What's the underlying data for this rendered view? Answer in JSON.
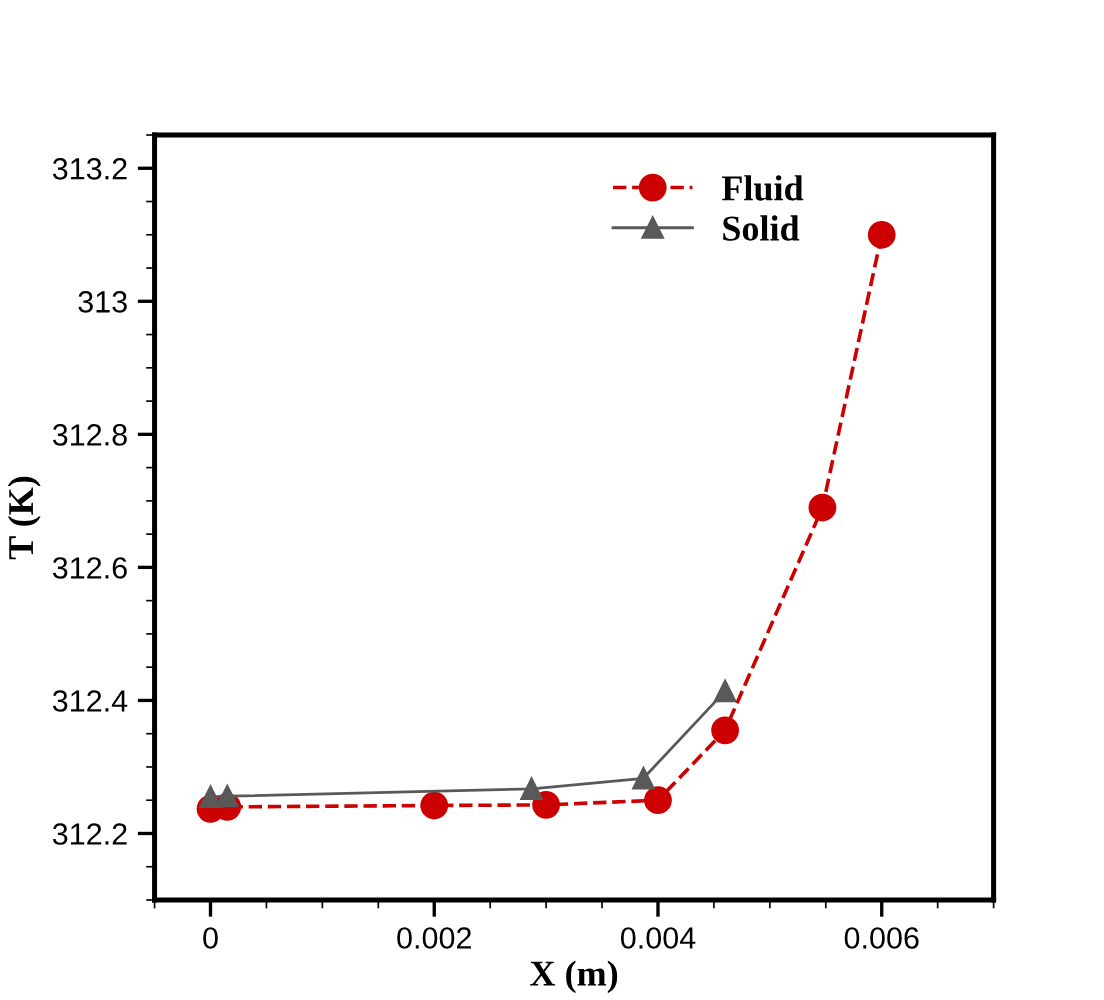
{
  "chart_data": {
    "type": "line",
    "xlabel": "X (m)",
    "ylabel": "T (K)",
    "xlim": [
      -0.0005,
      0.007
    ],
    "ylim": [
      312.1,
      313.25
    ],
    "xticks": [
      {
        "value": 0,
        "label": "0"
      },
      {
        "value": 0.002,
        "label": "0.002"
      },
      {
        "value": 0.004,
        "label": "0.004"
      },
      {
        "value": 0.006,
        "label": "0.006"
      }
    ],
    "yticks": [
      312.2,
      312.4,
      312.6,
      312.8,
      {
        "value": 313,
        "label": "313"
      },
      313.2
    ],
    "grid": false,
    "legend": "top right",
    "series": [
      {
        "name": "Fluid",
        "color": "#cc0000",
        "marker": "circle",
        "line_style": "dashed",
        "x": [
          0,
          0.00015,
          0.002,
          0.003,
          0.004,
          0.0046,
          0.00547,
          0.006
        ],
        "values": [
          312.237,
          312.24,
          312.242,
          312.243,
          312.25,
          312.355,
          312.69,
          313.1
        ]
      },
      {
        "name": "Solid",
        "color": "#595959",
        "marker": "triangle",
        "line_style": "solid",
        "x": [
          0,
          0.00015,
          0.00287,
          0.00387,
          0.0046
        ],
        "values": [
          312.255,
          312.256,
          312.267,
          312.283,
          312.414
        ]
      }
    ]
  }
}
